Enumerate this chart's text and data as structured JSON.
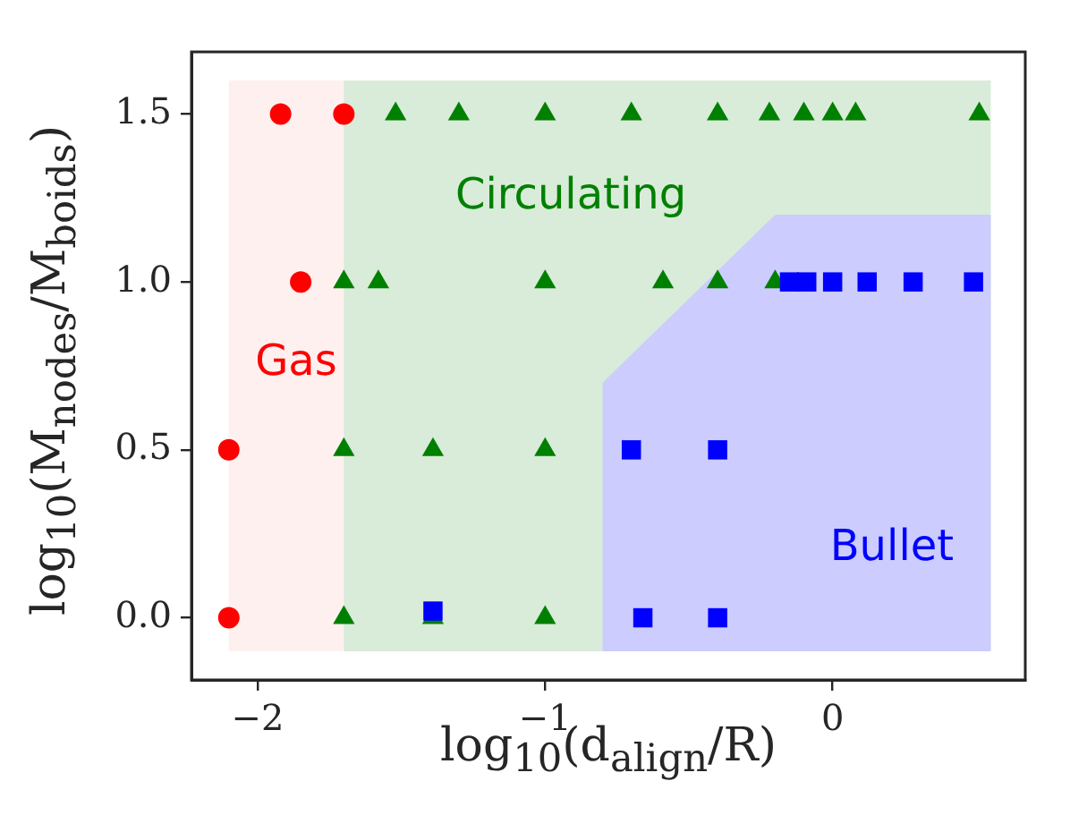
{
  "chart_data": {
    "type": "scatter",
    "xlabel": "log$_{10}$(d$_{align}$/R)",
    "ylabel": "log$_{10}$(M$_{nodes}$/M$_{boids}$)",
    "xlim": [
      -2.23,
      0.67
    ],
    "ylim": [
      -0.185,
      1.685
    ],
    "xticks": [
      {
        "value": -2,
        "label": "−2"
      },
      {
        "value": -1,
        "label": "−1"
      },
      0
    ],
    "yticks": [
      {
        "value": 0,
        "label": "0.0"
      },
      0.5,
      {
        "value": 1,
        "label": "1.0"
      },
      1.5
    ],
    "series": [
      {
        "name": "Gas",
        "color": "#ff0000",
        "marker": "circle",
        "x": [
          -1.92,
          -1.7,
          -1.85,
          -2.1,
          -2.1
        ],
        "values": [
          1.5,
          1.5,
          1.0,
          0.5,
          0.0
        ]
      },
      {
        "name": "Circulating",
        "color": "#008000",
        "marker": "triangle",
        "x": [
          -1.52,
          -1.3,
          -1.0,
          -0.7,
          -0.4,
          -0.22,
          -0.1,
          0.0,
          0.08,
          0.51,
          -1.7,
          -1.58,
          -1.0,
          -0.59,
          -0.4,
          -0.2,
          -1.7,
          -1.39,
          -1.0,
          -1.7,
          -1.39,
          -1.0
        ],
        "values": [
          1.5,
          1.5,
          1.5,
          1.5,
          1.5,
          1.5,
          1.5,
          1.5,
          1.5,
          1.5,
          1.0,
          1.0,
          1.0,
          1.0,
          1.0,
          1.0,
          0.5,
          0.5,
          0.5,
          0.0,
          0.0,
          0.0
        ]
      },
      {
        "name": "Bullet",
        "color": "#0000ff",
        "marker": "square",
        "x": [
          -0.15,
          -0.09,
          0.0,
          0.12,
          0.28,
          0.49,
          -0.7,
          -0.4,
          -1.39,
          -0.66,
          -0.4
        ],
        "values": [
          1.0,
          1.0,
          1.0,
          1.0,
          1.0,
          1.0,
          0.5,
          0.5,
          0.02,
          0.0,
          0.0
        ]
      },
      {
        "type": "area",
        "color": "#fff0f0",
        "x": [
          -2.1,
          -2.1,
          -1.7,
          -1.7
        ],
        "values": [
          -0.1,
          1.6,
          1.6,
          -0.1
        ]
      },
      {
        "type": "area",
        "color": "#d9ebd9",
        "x": [
          -1.7,
          -1.7,
          0.55,
          0.55
        ],
        "values": [
          -0.1,
          1.6,
          1.6,
          -0.1
        ]
      },
      {
        "type": "area",
        "color": "#ccccff",
        "x": [
          -0.8,
          -0.8,
          -0.2,
          0.55,
          0.55
        ],
        "values": [
          -0.1,
          0.7,
          1.2,
          1.2,
          -0.1
        ]
      }
    ]
  }
}
